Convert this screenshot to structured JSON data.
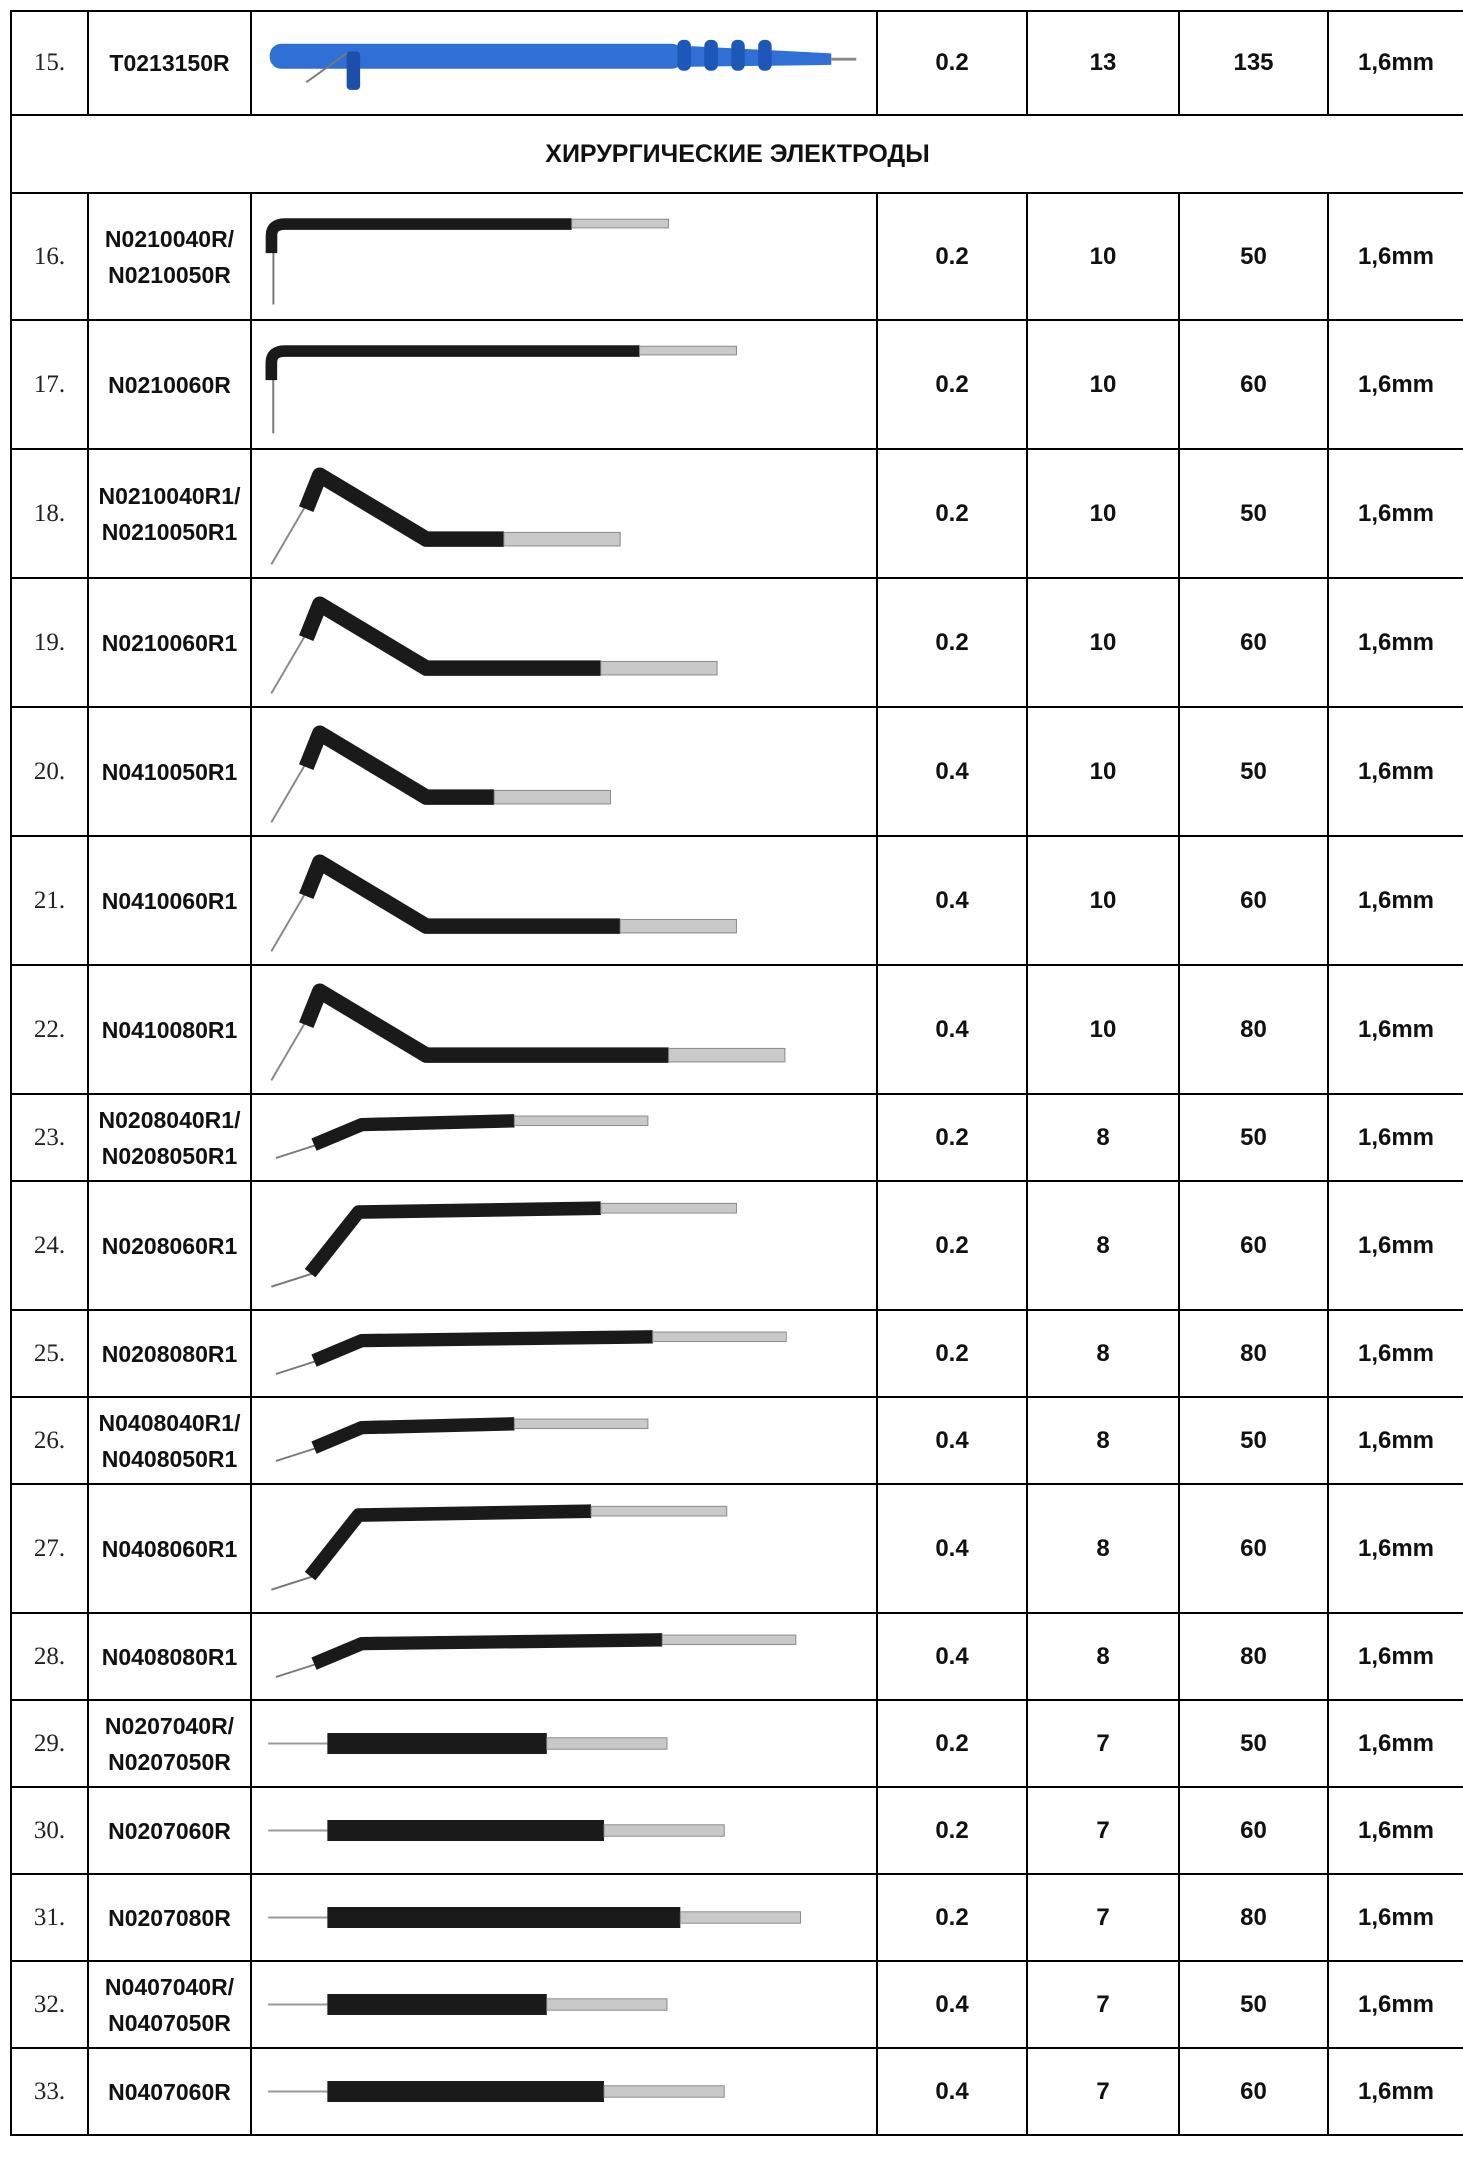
{
  "section_title": "ХИРУРГИЧЕСКИЕ ЭЛЕКТРОДЫ",
  "first_row": {
    "num": "15.",
    "code": [
      "T0213150R"
    ],
    "v1": "0.2",
    "v2": "13",
    "v3": "135",
    "v4": "1,6mm",
    "shape": "handle"
  },
  "rows": [
    {
      "num": "16.",
      "code": [
        "N0210040R/",
        "N0210050R"
      ],
      "v1": "0.2",
      "v2": "10",
      "v3": "50",
      "v4": "1,6mm",
      "shape": "hook",
      "len": 420
    },
    {
      "num": "17.",
      "code": [
        "N0210060R"
      ],
      "v1": "0.2",
      "v2": "10",
      "v3": "60",
      "v4": "1,6mm",
      "shape": "hook",
      "len": 490
    },
    {
      "num": "18.",
      "code": [
        "N0210040R1/",
        "N0210050R1"
      ],
      "v1": "0.2",
      "v2": "10",
      "v3": "50",
      "v4": "1,6mm",
      "shape": "bent",
      "len": 370
    },
    {
      "num": "19.",
      "code": [
        "N0210060R1"
      ],
      "v1": "0.2",
      "v2": "10",
      "v3": "60",
      "v4": "1,6mm",
      "shape": "bent",
      "len": 470
    },
    {
      "num": "20.",
      "code": [
        "N0410050R1"
      ],
      "v1": "0.4",
      "v2": "10",
      "v3": "50",
      "v4": "1,6mm",
      "shape": "bent",
      "len": 360
    },
    {
      "num": "21.",
      "code": [
        "N0410060R1"
      ],
      "v1": "0.4",
      "v2": "10",
      "v3": "60",
      "v4": "1,6mm",
      "shape": "bent",
      "len": 490
    },
    {
      "num": "22.",
      "code": [
        "N0410080R1"
      ],
      "v1": "0.4",
      "v2": "10",
      "v3": "80",
      "v4": "1,6mm",
      "shape": "bent",
      "len": 540
    },
    {
      "num": "23.",
      "code": [
        "N0208040R1/",
        "N0208050R1"
      ],
      "v1": "0.2",
      "v2": "8",
      "v3": "50",
      "v4": "1,6mm",
      "shape": "slight",
      "len": 400
    },
    {
      "num": "24.",
      "code": [
        "N0208060R1"
      ],
      "v1": "0.2",
      "v2": "8",
      "v3": "60",
      "v4": "1,6mm",
      "shape": "slight",
      "len": 490
    },
    {
      "num": "25.",
      "code": [
        "N0208080R1"
      ],
      "v1": "0.2",
      "v2": "8",
      "v3": "80",
      "v4": "1,6mm",
      "shape": "slight",
      "len": 545
    },
    {
      "num": "26.",
      "code": [
        "N0408040R1/",
        "N0408050R1"
      ],
      "v1": "0.4",
      "v2": "8",
      "v3": "50",
      "v4": "1,6mm",
      "shape": "slight",
      "len": 400
    },
    {
      "num": "27.",
      "code": [
        "N0408060R1"
      ],
      "v1": "0.4",
      "v2": "8",
      "v3": "60",
      "v4": "1,6mm",
      "shape": "slight",
      "len": 480
    },
    {
      "num": "28.",
      "code": [
        "N0408080R1"
      ],
      "v1": "0.4",
      "v2": "8",
      "v3": "80",
      "v4": "1,6mm",
      "shape": "slight",
      "len": 555
    },
    {
      "num": "29.",
      "code": [
        "N0207040R/",
        "N0207050R"
      ],
      "v1": "0.2",
      "v2": "7",
      "v3": "50",
      "v4": "1,6mm",
      "shape": "straight",
      "len": 420
    },
    {
      "num": "30.",
      "code": [
        "N0207060R"
      ],
      "v1": "0.2",
      "v2": "7",
      "v3": "60",
      "v4": "1,6mm",
      "shape": "straight",
      "len": 480
    },
    {
      "num": "31.",
      "code": [
        "N0207080R"
      ],
      "v1": "0.2",
      "v2": "7",
      "v3": "80",
      "v4": "1,6mm",
      "shape": "straight",
      "len": 560
    },
    {
      "num": "32.",
      "code": [
        "N0407040R/",
        "N0407050R"
      ],
      "v1": "0.4",
      "v2": "7",
      "v3": "50",
      "v4": "1,6mm",
      "shape": "straight",
      "len": 420
    },
    {
      "num": "33.",
      "code": [
        "N0407060R"
      ],
      "v1": "0.4",
      "v2": "7",
      "v3": "60",
      "v4": "1,6mm",
      "shape": "straight",
      "len": 480
    }
  ],
  "colors": {
    "handle": "#2f6fd6",
    "shaft": "#1a1a1a",
    "tip": "#c9c9c9",
    "border": "#000000"
  }
}
